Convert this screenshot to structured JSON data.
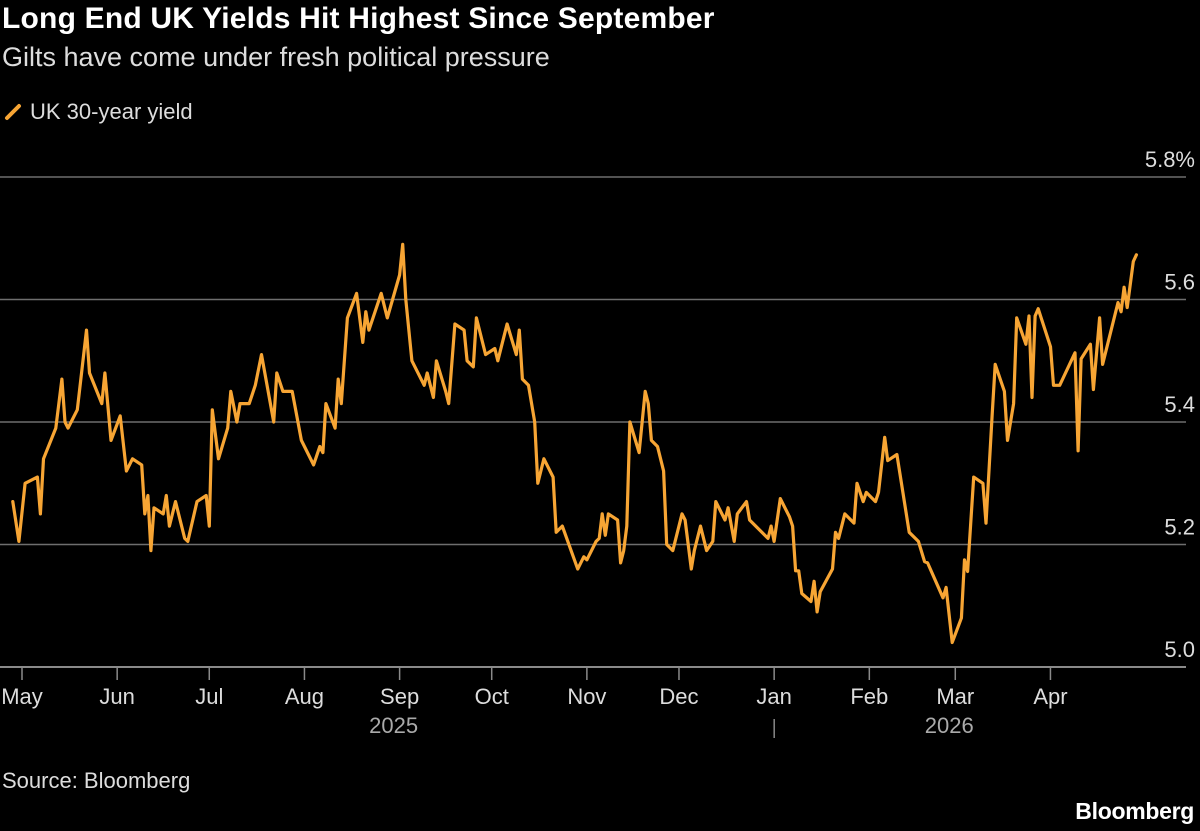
{
  "title": "Long End UK Yields Hit Highest Since September",
  "subtitle": "Gilts have come under fresh political pressure",
  "source": "Source: Bloomberg",
  "logo": "Bloomberg",
  "colors": {
    "series": "#f7a534",
    "background": "#000000",
    "grid": "#6e6e6e"
  },
  "chart_data": {
    "type": "line",
    "title": "Long End UK Yields Hit Highest Since September",
    "subtitle": "Gilts have come under fresh political pressure",
    "xlabel": "",
    "ylabel": "",
    "ylim": [
      5.0,
      5.8
    ],
    "y_ticks": [
      "5.0",
      "5.2",
      "5.4",
      "5.6",
      "5.8%"
    ],
    "y_tick_values": [
      5.0,
      5.2,
      5.4,
      5.6,
      5.8
    ],
    "x_ticks": [
      {
        "label": "May",
        "date": "2025-05-01"
      },
      {
        "label": "Jun",
        "date": "2025-06-01"
      },
      {
        "label": "Jul",
        "date": "2025-07-01"
      },
      {
        "label": "Aug",
        "date": "2025-08-01"
      },
      {
        "label": "Sep",
        "date": "2025-09-01"
      },
      {
        "label": "Oct",
        "date": "2025-10-01"
      },
      {
        "label": "Nov",
        "date": "2025-11-01"
      },
      {
        "label": "Dec",
        "date": "2025-12-01"
      },
      {
        "label": "Jan",
        "date": "2026-01-01"
      },
      {
        "label": "Feb",
        "date": "2026-02-01"
      },
      {
        "label": "Mar",
        "date": "2026-03-01"
      },
      {
        "label": "Apr",
        "date": "2026-04-01"
      }
    ],
    "year_labels": [
      {
        "label": "2025",
        "date": "2025-09-01"
      },
      {
        "label": "2026",
        "date": "2026-03-01"
      }
    ],
    "grid": true,
    "legend": "top-left",
    "series": [
      {
        "name": "UK 30-year yield",
        "color": "#f7a534",
        "points": [
          [
            "2025-04-28",
            5.27
          ],
          [
            "2025-04-30",
            5.205
          ],
          [
            "2025-05-02",
            5.3
          ],
          [
            "2025-05-06",
            5.31
          ],
          [
            "2025-05-07",
            5.25
          ],
          [
            "2025-05-08",
            5.34
          ],
          [
            "2025-05-12",
            5.39
          ],
          [
            "2025-05-14",
            5.47
          ],
          [
            "2025-05-15",
            5.4
          ],
          [
            "2025-05-16",
            5.39
          ],
          [
            "2025-05-19",
            5.42
          ],
          [
            "2025-05-22",
            5.55
          ],
          [
            "2025-05-23",
            5.48
          ],
          [
            "2025-05-27",
            5.43
          ],
          [
            "2025-05-28",
            5.48
          ],
          [
            "2025-05-30",
            5.37
          ],
          [
            "2025-06-02",
            5.41
          ],
          [
            "2025-06-04",
            5.32
          ],
          [
            "2025-06-06",
            5.34
          ],
          [
            "2025-06-09",
            5.33
          ],
          [
            "2025-06-10",
            5.25
          ],
          [
            "2025-06-11",
            5.28
          ],
          [
            "2025-06-12",
            5.19
          ],
          [
            "2025-06-13",
            5.26
          ],
          [
            "2025-06-16",
            5.25
          ],
          [
            "2025-06-17",
            5.28
          ],
          [
            "2025-06-18",
            5.23
          ],
          [
            "2025-06-20",
            5.27
          ],
          [
            "2025-06-23",
            5.21
          ],
          [
            "2025-06-24",
            5.205
          ],
          [
            "2025-06-27",
            5.27
          ],
          [
            "2025-06-30",
            5.28
          ],
          [
            "2025-07-01",
            5.23
          ],
          [
            "2025-07-02",
            5.42
          ],
          [
            "2025-07-04",
            5.34
          ],
          [
            "2025-07-07",
            5.39
          ],
          [
            "2025-07-08",
            5.45
          ],
          [
            "2025-07-10",
            5.4
          ],
          [
            "2025-07-11",
            5.43
          ],
          [
            "2025-07-14",
            5.43
          ],
          [
            "2025-07-16",
            5.46
          ],
          [
            "2025-07-18",
            5.51
          ],
          [
            "2025-07-22",
            5.4
          ],
          [
            "2025-07-23",
            5.48
          ],
          [
            "2025-07-25",
            5.45
          ],
          [
            "2025-07-28",
            5.45
          ],
          [
            "2025-07-31",
            5.37
          ],
          [
            "2025-08-04",
            5.33
          ],
          [
            "2025-08-06",
            5.36
          ],
          [
            "2025-08-07",
            5.35
          ],
          [
            "2025-08-08",
            5.43
          ],
          [
            "2025-08-11",
            5.39
          ],
          [
            "2025-08-12",
            5.47
          ],
          [
            "2025-08-13",
            5.43
          ],
          [
            "2025-08-15",
            5.57
          ],
          [
            "2025-08-18",
            5.61
          ],
          [
            "2025-08-20",
            5.53
          ],
          [
            "2025-08-21",
            5.58
          ],
          [
            "2025-08-22",
            5.55
          ],
          [
            "2025-08-26",
            5.61
          ],
          [
            "2025-08-28",
            5.57
          ],
          [
            "2025-09-01",
            5.64
          ],
          [
            "2025-09-02",
            5.69
          ],
          [
            "2025-09-03",
            5.6
          ],
          [
            "2025-09-05",
            5.5
          ],
          [
            "2025-09-09",
            5.46
          ],
          [
            "2025-09-10",
            5.48
          ],
          [
            "2025-09-12",
            5.44
          ],
          [
            "2025-09-13",
            5.5
          ],
          [
            "2025-09-16",
            5.45
          ],
          [
            "2025-09-17",
            5.43
          ],
          [
            "2025-09-19",
            5.56
          ],
          [
            "2025-09-22",
            5.55
          ],
          [
            "2025-09-23",
            5.5
          ],
          [
            "2025-09-25",
            5.49
          ],
          [
            "2025-09-26",
            5.57
          ],
          [
            "2025-09-29",
            5.51
          ],
          [
            "2025-10-02",
            5.52
          ],
          [
            "2025-10-03",
            5.5
          ],
          [
            "2025-10-06",
            5.56
          ],
          [
            "2025-10-09",
            5.51
          ],
          [
            "2025-10-10",
            5.55
          ],
          [
            "2025-10-11",
            5.47
          ],
          [
            "2025-10-13",
            5.46
          ],
          [
            "2025-10-15",
            5.4
          ],
          [
            "2025-10-16",
            5.3
          ],
          [
            "2025-10-18",
            5.34
          ],
          [
            "2025-10-21",
            5.31
          ],
          [
            "2025-10-22",
            5.22
          ],
          [
            "2025-10-24",
            5.23
          ],
          [
            "2025-10-29",
            5.16
          ],
          [
            "2025-10-31",
            5.18
          ],
          [
            "2025-11-01",
            5.175
          ],
          [
            "2025-11-04",
            5.205
          ],
          [
            "2025-11-05",
            5.21
          ],
          [
            "2025-11-06",
            5.25
          ],
          [
            "2025-11-07",
            5.215
          ],
          [
            "2025-11-08",
            5.25
          ],
          [
            "2025-11-11",
            5.24
          ],
          [
            "2025-11-12",
            5.17
          ],
          [
            "2025-11-13",
            5.19
          ],
          [
            "2025-11-14",
            5.23
          ],
          [
            "2025-11-15",
            5.4
          ],
          [
            "2025-11-18",
            5.35
          ],
          [
            "2025-11-20",
            5.45
          ],
          [
            "2025-11-21",
            5.43
          ],
          [
            "2025-11-22",
            5.37
          ],
          [
            "2025-11-24",
            5.36
          ],
          [
            "2025-11-26",
            5.32
          ],
          [
            "2025-11-27",
            5.2
          ],
          [
            "2025-11-29",
            5.19
          ],
          [
            "2025-12-02",
            5.25
          ],
          [
            "2025-12-03",
            5.24
          ],
          [
            "2025-12-05",
            5.16
          ],
          [
            "2025-12-06",
            5.19
          ],
          [
            "2025-12-08",
            5.23
          ],
          [
            "2025-12-10",
            5.19
          ],
          [
            "2025-12-12",
            5.205
          ],
          [
            "2025-12-13",
            5.27
          ],
          [
            "2025-12-16",
            5.24
          ],
          [
            "2025-12-17",
            5.26
          ],
          [
            "2025-12-19",
            5.205
          ],
          [
            "2025-12-20",
            5.25
          ],
          [
            "2025-12-23",
            5.27
          ],
          [
            "2025-12-24",
            5.24
          ],
          [
            "2025-12-30",
            5.21
          ],
          [
            "2025-12-31",
            5.23
          ],
          [
            "2026-01-01",
            5.205
          ],
          [
            "2026-01-03",
            5.275
          ],
          [
            "2026-01-06",
            5.245
          ],
          [
            "2026-01-07",
            5.23
          ],
          [
            "2026-01-08",
            5.157
          ],
          [
            "2026-01-09",
            5.157
          ],
          [
            "2026-01-10",
            5.12
          ],
          [
            "2026-01-13",
            5.107
          ],
          [
            "2026-01-14",
            5.14
          ],
          [
            "2026-01-15",
            5.09
          ],
          [
            "2026-01-16",
            5.123
          ],
          [
            "2026-01-20",
            5.16
          ],
          [
            "2026-01-21",
            5.22
          ],
          [
            "2026-01-22",
            5.21
          ],
          [
            "2026-01-24",
            5.25
          ],
          [
            "2026-01-27",
            5.235
          ],
          [
            "2026-01-28",
            5.3
          ],
          [
            "2026-01-30",
            5.27
          ],
          [
            "2026-01-31",
            5.285
          ],
          [
            "2026-02-03",
            5.27
          ],
          [
            "2026-02-04",
            5.285
          ],
          [
            "2026-02-06",
            5.375
          ],
          [
            "2026-02-07",
            5.337
          ],
          [
            "2026-02-10",
            5.347
          ],
          [
            "2026-02-14",
            5.22
          ],
          [
            "2026-02-17",
            5.205
          ],
          [
            "2026-02-19",
            5.172
          ],
          [
            "2026-02-20",
            5.17
          ],
          [
            "2026-02-25",
            5.113
          ],
          [
            "2026-02-26",
            5.13
          ],
          [
            "2026-02-28",
            5.04
          ],
          [
            "2026-03-03",
            5.08
          ],
          [
            "2026-03-04",
            5.175
          ],
          [
            "2026-03-05",
            5.156
          ],
          [
            "2026-03-07",
            5.31
          ],
          [
            "2026-03-10",
            5.3
          ],
          [
            "2026-03-11",
            5.235
          ],
          [
            "2026-03-13",
            5.41
          ],
          [
            "2026-03-14",
            5.494
          ],
          [
            "2026-03-17",
            5.45
          ],
          [
            "2026-03-18",
            5.37
          ],
          [
            "2026-03-20",
            5.43
          ],
          [
            "2026-03-21",
            5.57
          ],
          [
            "2026-03-24",
            5.527
          ],
          [
            "2026-03-25",
            5.573
          ],
          [
            "2026-03-26",
            5.44
          ],
          [
            "2026-03-27",
            5.573
          ],
          [
            "2026-03-28",
            5.585
          ],
          [
            "2026-04-01",
            5.523
          ],
          [
            "2026-04-02",
            5.46
          ],
          [
            "2026-04-04",
            5.46
          ],
          [
            "2026-04-09",
            5.513
          ],
          [
            "2026-04-10",
            5.353
          ],
          [
            "2026-04-11",
            5.503
          ],
          [
            "2026-04-14",
            5.527
          ],
          [
            "2026-04-15",
            5.453
          ],
          [
            "2026-04-17",
            5.57
          ],
          [
            "2026-04-18",
            5.494
          ],
          [
            "2026-04-23",
            5.595
          ],
          [
            "2026-04-24",
            5.58
          ],
          [
            "2026-04-25",
            5.62
          ],
          [
            "2026-04-26",
            5.587
          ],
          [
            "2026-04-28",
            5.662
          ],
          [
            "2026-04-29",
            5.673
          ]
        ]
      }
    ]
  }
}
